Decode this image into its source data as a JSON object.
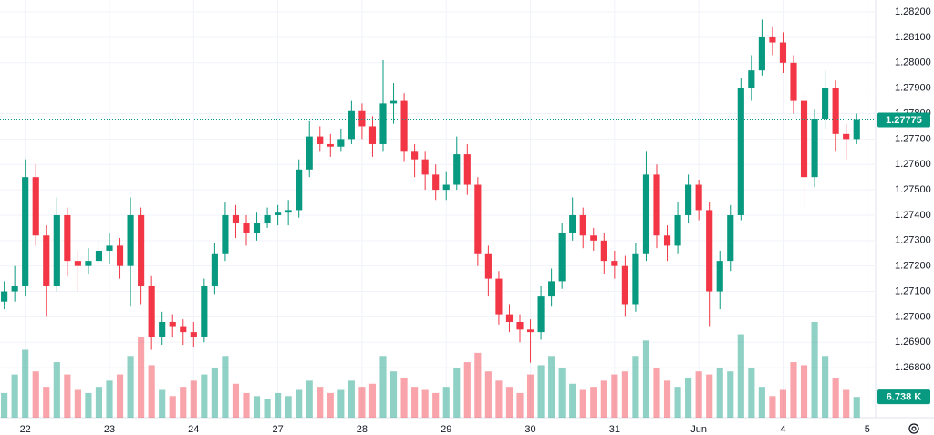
{
  "chart_data": {
    "type": "candlestick",
    "x": [
      -0.25,
      -0.125,
      0,
      0.125,
      0.25,
      0.375,
      0.5,
      0.625,
      0.75,
      0.875,
      1,
      1.125,
      1.25,
      1.375,
      1.5,
      1.625,
      1.75,
      1.875,
      2,
      2.125,
      2.25,
      2.375,
      2.5,
      2.625,
      2.75,
      2.875,
      3,
      3.125,
      3.25,
      3.375,
      3.5,
      3.625,
      3.75,
      3.875,
      4,
      4.125,
      4.25,
      4.375,
      4.5,
      4.625,
      4.75,
      4.875,
      5,
      5.125,
      5.25,
      5.375,
      5.5,
      5.625,
      5.75,
      5.875,
      6,
      6.125,
      6.25,
      6.375,
      6.5,
      6.625,
      6.75,
      6.875,
      7,
      7.125,
      7.25,
      7.375,
      7.5,
      7.625,
      7.75,
      7.875,
      8,
      8.125,
      8.25,
      8.375,
      8.5,
      8.625,
      8.75,
      8.875,
      9,
      9.125,
      9.25,
      9.375,
      9.5,
      9.625,
      9.75,
      9.875
    ],
    "open": [
      1.2706,
      1.271,
      1.2712,
      1.2755,
      1.2732,
      1.2712,
      1.274,
      1.2722,
      1.272,
      1.2722,
      1.2726,
      1.2728,
      1.272,
      1.274,
      1.2712,
      1.2692,
      1.2698,
      1.2696,
      1.2694,
      1.2692,
      1.2712,
      1.2725,
      1.274,
      1.2737,
      1.2733,
      1.2737,
      1.274,
      1.2741,
      1.2742,
      1.2758,
      1.2771,
      1.2768,
      1.2767,
      1.277,
      1.2781,
      1.2775,
      1.2768,
      1.2784,
      1.2785,
      1.2765,
      1.2762,
      1.2756,
      1.275,
      1.2752,
      1.2764,
      1.2752,
      1.2725,
      1.2715,
      1.2701,
      1.2698,
      1.2695,
      1.2694,
      1.2708,
      1.2714,
      1.2733,
      1.274,
      1.2732,
      1.273,
      1.2722,
      1.272,
      1.2705,
      1.2725,
      1.2756,
      1.2732,
      1.2728,
      1.274,
      1.2752,
      1.2742,
      1.271,
      1.2722,
      1.274,
      1.279,
      1.2797,
      1.281,
      1.2808,
      1.28,
      1.2785,
      1.2755,
      1.2778,
      1.279,
      1.2772,
      1.277
    ],
    "high": [
      1.2714,
      1.272,
      1.2762,
      1.276,
      1.2736,
      1.2747,
      1.2743,
      1.2726,
      1.2727,
      1.2731,
      1.2733,
      1.2731,
      1.2747,
      1.2743,
      1.2716,
      1.2702,
      1.2701,
      1.2699,
      1.2698,
      1.2715,
      1.2729,
      1.2745,
      1.2744,
      1.274,
      1.2741,
      1.2743,
      1.2744,
      1.2746,
      1.2762,
      1.2777,
      1.2775,
      1.2772,
      1.2774,
      1.2785,
      1.2784,
      1.2779,
      1.2801,
      1.2792,
      1.2788,
      1.2768,
      1.2765,
      1.276,
      1.2757,
      1.2771,
      1.2768,
      1.2755,
      1.2728,
      1.2718,
      1.2705,
      1.2701,
      1.2699,
      1.2712,
      1.2719,
      1.2737,
      1.2747,
      1.2743,
      1.2735,
      1.2733,
      1.2726,
      1.2724,
      1.2729,
      1.2765,
      1.276,
      1.2736,
      1.2745,
      1.2756,
      1.2754,
      1.2745,
      1.2726,
      1.2744,
      1.2794,
      1.2803,
      1.2817,
      1.2814,
      1.2812,
      1.2803,
      1.2788,
      1.2782,
      1.2797,
      1.2793,
      1.2776,
      1.278
    ],
    "low": [
      1.2703,
      1.2706,
      1.2708,
      1.2728,
      1.27,
      1.271,
      1.2716,
      1.271,
      1.2717,
      1.272,
      1.2721,
      1.2715,
      1.2704,
      1.2705,
      1.2687,
      1.2689,
      1.2692,
      1.2689,
      1.2688,
      1.269,
      1.2709,
      1.2722,
      1.2731,
      1.2728,
      1.273,
      1.2735,
      1.2736,
      1.2736,
      1.2739,
      1.2755,
      1.2765,
      1.2763,
      1.2765,
      1.2768,
      1.277,
      1.2763,
      1.2765,
      1.2776,
      1.2761,
      1.2755,
      1.275,
      1.2746,
      1.2746,
      1.275,
      1.2748,
      1.272,
      1.2708,
      1.2697,
      1.2694,
      1.269,
      1.2682,
      1.2691,
      1.2704,
      1.2711,
      1.273,
      1.2727,
      1.2726,
      1.2717,
      1.2715,
      1.27,
      1.2702,
      1.2722,
      1.2727,
      1.2722,
      1.2725,
      1.2737,
      1.2738,
      1.2696,
      1.2703,
      1.2718,
      1.2738,
      1.2785,
      1.2795,
      1.2803,
      1.2796,
      1.278,
      1.2743,
      1.2751,
      1.2774,
      1.2765,
      1.2762,
      1.2768
    ],
    "close": [
      1.271,
      1.2712,
      1.2755,
      1.2732,
      1.2712,
      1.274,
      1.2722,
      1.272,
      1.2722,
      1.2726,
      1.2728,
      1.272,
      1.274,
      1.2712,
      1.2692,
      1.2698,
      1.2696,
      1.2694,
      1.2692,
      1.2712,
      1.2725,
      1.274,
      1.2737,
      1.2733,
      1.2737,
      1.274,
      1.2741,
      1.2742,
      1.2758,
      1.2771,
      1.2768,
      1.2767,
      1.277,
      1.2781,
      1.2775,
      1.2768,
      1.2784,
      1.2785,
      1.2765,
      1.2762,
      1.2756,
      1.275,
      1.2752,
      1.2764,
      1.2752,
      1.2725,
      1.2715,
      1.2701,
      1.2698,
      1.2695,
      1.2694,
      1.2708,
      1.2714,
      1.2733,
      1.274,
      1.2732,
      1.273,
      1.2722,
      1.272,
      1.2705,
      1.2725,
      1.2756,
      1.2732,
      1.2728,
      1.274,
      1.2752,
      1.2742,
      1.271,
      1.2722,
      1.274,
      1.279,
      1.2797,
      1.281,
      1.2808,
      1.28,
      1.2785,
      1.2755,
      1.2778,
      1.279,
      1.2772,
      1.277,
      1.27775
    ],
    "volume": {
      "values": [
        8,
        14,
        22,
        15,
        10,
        18,
        14,
        9,
        8,
        10,
        12,
        14,
        20,
        26,
        17,
        9,
        7,
        10,
        12,
        14,
        16,
        20,
        11,
        8,
        7,
        6,
        8,
        7,
        9,
        12,
        10,
        8,
        9,
        12,
        10,
        11,
        20,
        15,
        13,
        10,
        9,
        8,
        10,
        16,
        18,
        21,
        15,
        12,
        10,
        8,
        14,
        17,
        20,
        16,
        11,
        9,
        10,
        12,
        14,
        15,
        20,
        25,
        16,
        12,
        10,
        13,
        15,
        14,
        16,
        15,
        27,
        16,
        10,
        7,
        9,
        18,
        17,
        31,
        20,
        13,
        9,
        6.738
      ],
      "value_labels": [
        null,
        null,
        null,
        null,
        null,
        null,
        null,
        null,
        null,
        null,
        null,
        null,
        null,
        null,
        null,
        null,
        null,
        null,
        null,
        null,
        null,
        null,
        null,
        null,
        null,
        null,
        null,
        null,
        null,
        null,
        null,
        null,
        null,
        null,
        null,
        null,
        null,
        null,
        null,
        null,
        null,
        null,
        null,
        null,
        null,
        null,
        null,
        null,
        null,
        null,
        null,
        null,
        null,
        null,
        null,
        null,
        null,
        null,
        null,
        null,
        null,
        null,
        null,
        null,
        null,
        null,
        null,
        null,
        null,
        null,
        null,
        null,
        null,
        null,
        null,
        null,
        null,
        null,
        null,
        null,
        null,
        "6.738 K"
      ]
    },
    "xlim": [
      -0.3,
      10.1
    ],
    "xticks": [
      {
        "value": 0,
        "label": "22"
      },
      {
        "value": 1,
        "label": "23"
      },
      {
        "value": 2,
        "label": "24"
      },
      {
        "value": 3,
        "label": "27"
      },
      {
        "value": 4,
        "label": "28"
      },
      {
        "value": 5,
        "label": "29"
      },
      {
        "value": 6,
        "label": "30"
      },
      {
        "value": 7,
        "label": "31"
      },
      {
        "value": 8,
        "label": "Jun"
      },
      {
        "value": 9,
        "label": "4"
      },
      {
        "value": 10,
        "label": "5"
      }
    ],
    "ylim": [
      1.26603,
      1.28247
    ],
    "yticks": [
      {
        "value": 1.268,
        "label": "1.26800"
      },
      {
        "value": 1.269,
        "label": "1.26900"
      },
      {
        "value": 1.27,
        "label": "1.27000"
      },
      {
        "value": 1.271,
        "label": "1.27100"
      },
      {
        "value": 1.272,
        "label": "1.27200"
      },
      {
        "value": 1.273,
        "label": "1.27300"
      },
      {
        "value": 1.274,
        "label": "1.27400"
      },
      {
        "value": 1.275,
        "label": "1.27500"
      },
      {
        "value": 1.276,
        "label": "1.27600"
      },
      {
        "value": 1.277,
        "label": "1.27700"
      },
      {
        "value": 1.278,
        "label": "1.27800"
      },
      {
        "value": 1.279,
        "label": "1.27900"
      },
      {
        "value": 1.28,
        "label": "1.28000"
      },
      {
        "value": 1.281,
        "label": "1.28100"
      },
      {
        "value": 1.282,
        "label": "1.28200"
      }
    ],
    "grid": true,
    "up_color": "#089981",
    "down_color": "#f23645"
  }
}
